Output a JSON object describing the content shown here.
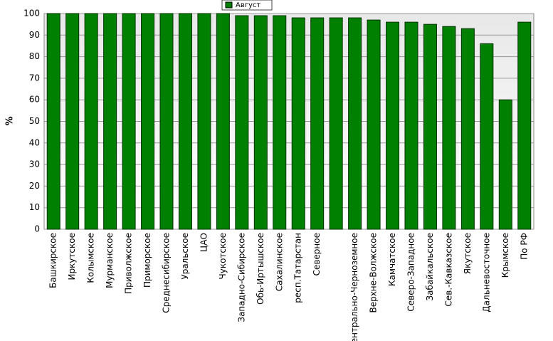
{
  "chart_data": {
    "type": "bar",
    "legend": "Август",
    "ylabel": "%",
    "categories": [
      "Башкирское",
      "Иркутское",
      "Колымское",
      "Мурманское",
      "Приволжское",
      "Приморское",
      "Среднесибирское",
      "Уральское",
      "ЦАО",
      "Чукотское",
      "Западно-Сибирское",
      "Обь-Иртышское",
      "Сахалинское",
      "респ.Татарстан",
      "Северное",
      null,
      "Центрально-Черноземное",
      "Верхне-Волжское",
      "Камчатское",
      "Северо-Западное",
      "Забайкальское",
      "Сев.-Кавказское",
      "Якутское",
      "Дальневосточное",
      "Крымское",
      "По РФ"
    ],
    "values": [
      100,
      100,
      100,
      100,
      100,
      100,
      100,
      100,
      100,
      100,
      99,
      99,
      99,
      98,
      98,
      98,
      98,
      97,
      96,
      96,
      95,
      94,
      93,
      86,
      60,
      96
    ],
    "color": "#008000",
    "ylim": [
      0,
      100
    ],
    "yticks": [
      0,
      10,
      20,
      30,
      40,
      50,
      60,
      70,
      80,
      90,
      100
    ],
    "grid": true
  }
}
